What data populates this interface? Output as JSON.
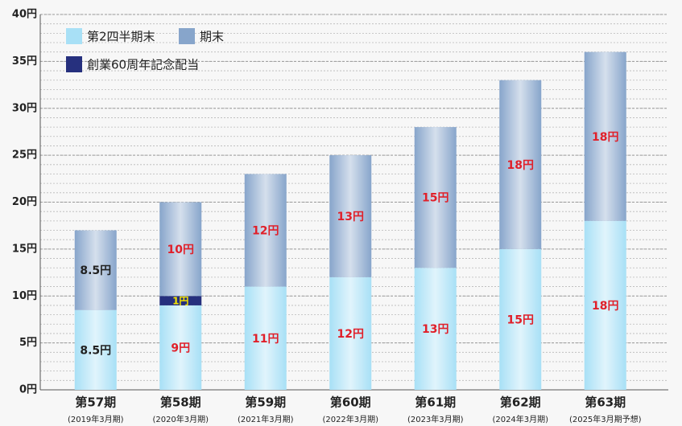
{
  "chart_data": {
    "type": "stacked_bar",
    "categories": [
      "第57期",
      "第58期",
      "第59期",
      "第60期",
      "第61期",
      "第62期",
      "第63期"
    ],
    "category_notes": [
      "(2019年3月期)",
      "(2020年3月期)",
      "(2021年3月期)",
      "(2022年3月期)",
      "(2023年3月期)",
      "(2024年3月期)",
      "(2025年3月期予想)"
    ],
    "series": [
      {
        "name": "第2四半期末",
        "color": "#a8e0f6",
        "values": [
          8.5,
          9,
          11,
          12,
          13,
          15,
          18
        ],
        "value_labels": [
          "8.5円",
          "9円",
          "11円",
          "12円",
          "13円",
          "15円",
          "18円"
        ]
      },
      {
        "name": "創業60周年記念配当",
        "color": "#26307e",
        "values": [
          null,
          1,
          null,
          null,
          null,
          null,
          null
        ],
        "value_labels": [
          null,
          "1円",
          null,
          null,
          null,
          null,
          null
        ]
      },
      {
        "name": "期末",
        "color": "#87a5cb",
        "values": [
          8.5,
          10,
          12,
          13,
          15,
          18,
          18
        ],
        "value_labels": [
          "8.5円",
          "10円",
          "12円",
          "13円",
          "15円",
          "18円",
          "18円"
        ]
      }
    ],
    "label_colors": [
      "#222222",
      "#e0202a",
      "#e0202a",
      "#e0202a",
      "#e0202a",
      "#e0202a",
      "#e0202a"
    ],
    "ylim": [
      0,
      40
    ],
    "yticks": [
      {
        "value": 0,
        "label": "0円"
      },
      {
        "value": 5,
        "label": "5円"
      },
      {
        "value": 10,
        "label": "10円"
      },
      {
        "value": 15,
        "label": "15円"
      },
      {
        "value": 20,
        "label": "20円"
      },
      {
        "value": 25,
        "label": "25円"
      },
      {
        "value": 30,
        "label": "30円"
      },
      {
        "value": 35,
        "label": "35円"
      },
      {
        "value": 40,
        "label": "40円"
      }
    ],
    "grid": true
  }
}
